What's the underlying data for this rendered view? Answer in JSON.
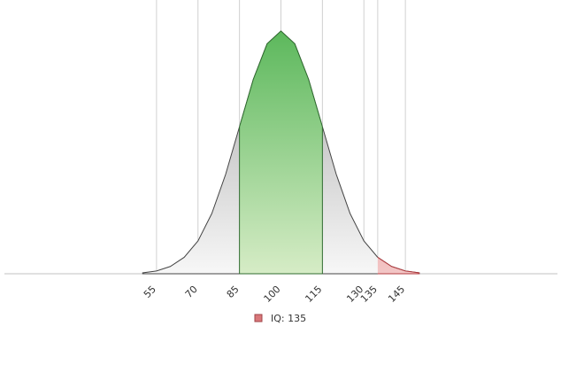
{
  "chart_data": {
    "type": "area",
    "x": [
      50,
      55,
      60,
      65,
      70,
      75,
      80,
      85,
      90,
      95,
      100,
      105,
      110,
      115,
      120,
      125,
      130,
      135,
      140,
      145,
      150
    ],
    "values": [
      0.01,
      0.03,
      0.08,
      0.18,
      0.36,
      0.66,
      1.09,
      1.61,
      2.13,
      2.52,
      2.66,
      2.52,
      2.13,
      1.61,
      1.09,
      0.66,
      0.36,
      0.18,
      0.08,
      0.03,
      0.01
    ],
    "color": "#999999",
    "xlim": [
      0,
      200
    ],
    "ylim": [
      0,
      3
    ],
    "xticks": [
      55,
      70,
      85,
      100,
      115,
      130,
      135,
      145
    ],
    "grid": true,
    "band": {
      "from": 85,
      "to": 115,
      "color": "#5cb85c"
    },
    "series": [
      {
        "name": "IQ: 135",
        "color": "#d9777a",
        "from": 135
      }
    ],
    "legend": "bottom"
  }
}
